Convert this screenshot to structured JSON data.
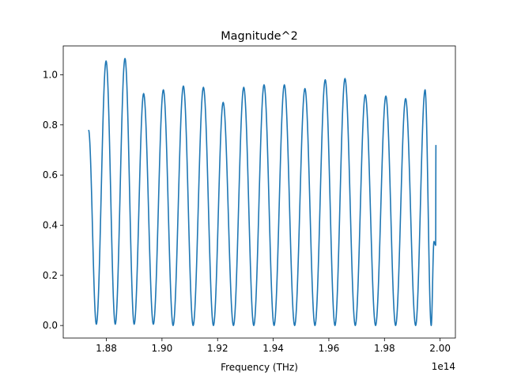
{
  "chart_data": {
    "type": "line",
    "title": "Magnitude^2",
    "xlabel": "Frequency (THz)",
    "ylabel": "",
    "x_offset_label": "1e14",
    "xlim": [
      1.8645,
      2.0055
    ],
    "ylim": [
      -0.05,
      1.115
    ],
    "xticks": [
      1.88,
      1.9,
      1.92,
      1.94,
      1.96,
      1.98,
      2.0
    ],
    "xtick_labels": [
      "1.88",
      "1.90",
      "1.92",
      "1.94",
      "1.96",
      "1.98",
      "2.00"
    ],
    "yticks": [
      0.0,
      0.2,
      0.4,
      0.6,
      0.8,
      1.0
    ],
    "ytick_labels": [
      "0.0",
      "0.2",
      "0.4",
      "0.6",
      "0.8",
      "1.0"
    ],
    "grid": false,
    "line_color": "#1f77b4",
    "series": [
      {
        "x_start": 1.8736,
        "x_end": 1.9985,
        "start_value": 0.78,
        "end_value": 0.72,
        "peaks": [
          {
            "x": 1.8799,
            "y": 1.055
          },
          {
            "x": 1.8867,
            "y": 1.065
          },
          {
            "x": 1.8934,
            "y": 0.925
          },
          {
            "x": 1.9005,
            "y": 0.94
          },
          {
            "x": 1.9077,
            "y": 0.955
          },
          {
            "x": 1.9149,
            "y": 0.95
          },
          {
            "x": 1.922,
            "y": 0.89
          },
          {
            "x": 1.9294,
            "y": 0.95
          },
          {
            "x": 1.9367,
            "y": 0.96
          },
          {
            "x": 1.944,
            "y": 0.96
          },
          {
            "x": 1.9514,
            "y": 0.945
          },
          {
            "x": 1.9587,
            "y": 0.98
          },
          {
            "x": 1.9658,
            "y": 0.985
          },
          {
            "x": 1.9731,
            "y": 0.92
          },
          {
            "x": 1.9805,
            "y": 0.915
          },
          {
            "x": 1.9876,
            "y": 0.905
          },
          {
            "x": 1.9946,
            "y": 0.94
          }
        ],
        "troughs": [
          {
            "x": 1.8764,
            "y": 0.005
          },
          {
            "x": 1.8832,
            "y": 0.005
          },
          {
            "x": 1.89,
            "y": 0.005
          },
          {
            "x": 1.8969,
            "y": 0.005
          },
          {
            "x": 1.904,
            "y": 0.0
          },
          {
            "x": 1.9112,
            "y": 0.0
          },
          {
            "x": 1.9185,
            "y": 0.0
          },
          {
            "x": 1.9257,
            "y": 0.0
          },
          {
            "x": 1.933,
            "y": 0.0
          },
          {
            "x": 1.9403,
            "y": 0.0
          },
          {
            "x": 1.9477,
            "y": 0.0
          },
          {
            "x": 1.955,
            "y": 0.0
          },
          {
            "x": 1.9622,
            "y": 0.0
          },
          {
            "x": 1.9695,
            "y": 0.0
          },
          {
            "x": 1.9768,
            "y": 0.0
          },
          {
            "x": 1.984,
            "y": 0.0
          },
          {
            "x": 1.9912,
            "y": 0.0
          },
          {
            "x": 1.9968,
            "y": 0.0
          }
        ],
        "tail_points": [
          {
            "x": 1.9978,
            "y": 0.335
          },
          {
            "x": 1.9984,
            "y": 0.32
          }
        ]
      }
    ]
  }
}
